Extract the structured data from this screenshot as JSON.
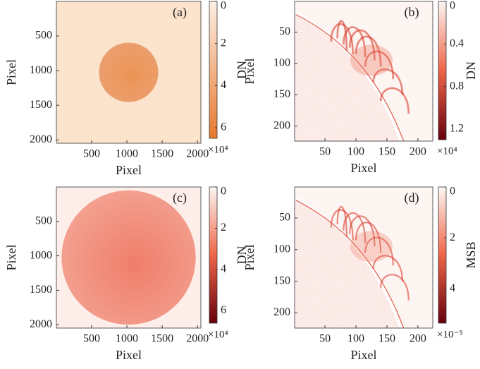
{
  "chart_data": [
    {
      "type": "image",
      "label": "(a)",
      "xlabel": "Pixel",
      "ylabel": "Pixel",
      "xlim": [
        1,
        2048
      ],
      "ylim": [
        1,
        2048
      ],
      "yreverse": true,
      "xticks": [
        500,
        1000,
        1500,
        2000
      ],
      "yticks": [
        500,
        1000,
        1500,
        2000
      ],
      "colorbar": {
        "label": "DN",
        "lim": [
          0,
          65000
        ],
        "exponent": "×10⁴",
        "colormap": [
          "#fdf0e4",
          "#e8782e"
        ],
        "ticks": [
          0,
          {
            "value": 20000,
            "label": "2"
          },
          {
            "value": 40000,
            "label": "4"
          },
          {
            "value": 60000,
            "label": "6"
          }
        ]
      }
    },
    {
      "type": "image",
      "label": "(b)",
      "xlabel": "Pixel",
      "ylabel": "Pixel",
      "xlim": [
        1,
        224
      ],
      "ylim": [
        1,
        224
      ],
      "yreverse": true,
      "xticks": [
        50,
        100,
        150,
        200
      ],
      "yticks": [
        50,
        100,
        150,
        200
      ],
      "colorbar": {
        "label": "DN",
        "lim": [
          0,
          13000
        ],
        "exponent": "×10⁴",
        "colormap": [
          "#fdf6f3",
          "#ef6548",
          "#67000d"
        ],
        "ticks": [
          0,
          {
            "value": 4000,
            "label": "0.4"
          },
          {
            "value": 8000,
            "label": "0.8"
          },
          {
            "value": 12000,
            "label": "1.2"
          }
        ]
      }
    },
    {
      "type": "image",
      "label": "(c)",
      "xlabel": "Pixel",
      "ylabel": "Pixel",
      "xlim": [
        1,
        2048
      ],
      "ylim": [
        1,
        2048
      ],
      "yreverse": true,
      "xticks": [
        500,
        1000,
        1500,
        2000
      ],
      "yticks": [
        500,
        1000,
        1500,
        2000
      ],
      "colorbar": {
        "label": "DN",
        "lim": [
          0,
          66000
        ],
        "exponent": "×10⁴",
        "colormap": [
          "#fdf6f3",
          "#ef6548",
          "#67000d"
        ],
        "ticks": [
          0,
          {
            "value": 20000,
            "label": "2"
          },
          {
            "value": 40000,
            "label": "4"
          },
          {
            "value": 60000,
            "label": "6"
          }
        ]
      }
    },
    {
      "type": "image",
      "label": "(d)",
      "xlabel": "Pixel",
      "ylabel": "Pixel",
      "xlim": [
        1,
        224
      ],
      "ylim": [
        1,
        224
      ],
      "yreverse": true,
      "xticks": [
        50,
        100,
        150,
        200
      ],
      "yticks": [
        50,
        100,
        150,
        200
      ],
      "colorbar": {
        "label": "MSB",
        "lim": [
          0,
          5.35e-05
        ],
        "exponent": "×10⁻⁵",
        "colormap": [
          "#fdf6f3",
          "#ef6548",
          "#67000d"
        ],
        "ticks": [
          0,
          {
            "value": 2e-05,
            "label": "2"
          },
          {
            "value": 4e-05,
            "label": "4"
          }
        ]
      }
    }
  ]
}
